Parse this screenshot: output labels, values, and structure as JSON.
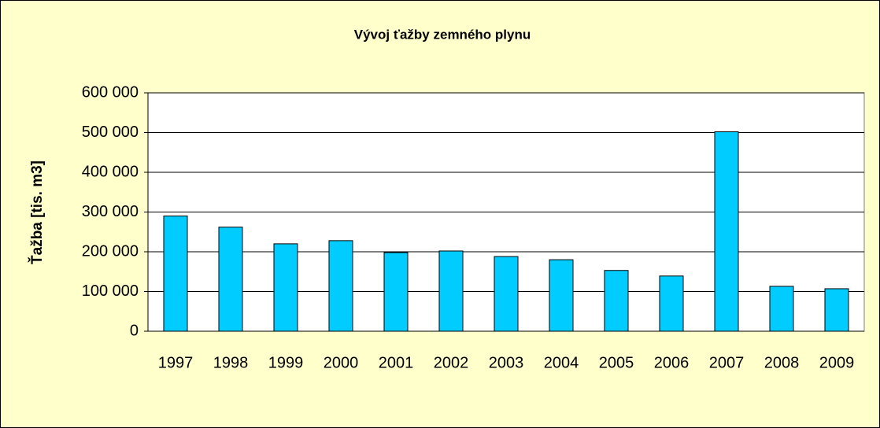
{
  "chart_data": {
    "type": "bar",
    "title": "Vývoj ťažby zemného plynu",
    "y_label": "Ťažba [tis. m3]",
    "categories": [
      "1997",
      "1998",
      "1999",
      "2000",
      "2001",
      "2002",
      "2003",
      "2004",
      "2005",
      "2006",
      "2007",
      "2008",
      "2009"
    ],
    "values": [
      290000,
      262000,
      220000,
      228000,
      198000,
      202000,
      188000,
      180000,
      153000,
      139000,
      502000,
      113000,
      107000
    ],
    "color": "#00ccff",
    "ylim": [
      0,
      600000
    ],
    "yticks": [
      0,
      {
        "value": 100000,
        "label": "100 000"
      },
      {
        "value": 200000,
        "label": "200 000"
      },
      {
        "value": 300000,
        "label": "300 000"
      },
      {
        "value": 400000,
        "label": "400 000"
      },
      {
        "value": 500000,
        "label": "500 000"
      },
      {
        "value": 600000,
        "label": "600 000"
      }
    ],
    "grid": true
  }
}
